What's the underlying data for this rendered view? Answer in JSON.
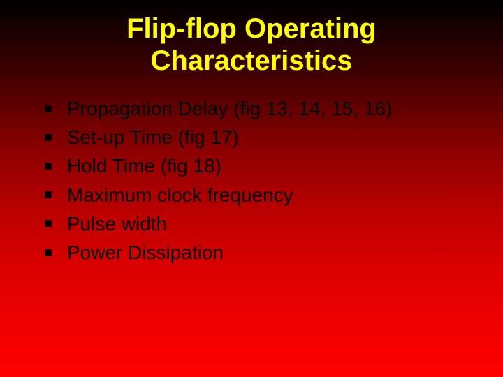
{
  "slide": {
    "title_line1": "Flip-flop Operating",
    "title_line2": "Characteristics",
    "title_color": "#ffff00",
    "title_fontsize": 40,
    "bullet_fontsize": 28,
    "bullet_marker_color": "#000000",
    "bullet_marker_size": 10,
    "text_color": "#000000",
    "background_gradient": {
      "from": "#000000",
      "to": "#ff0000",
      "direction": "top-to-bottom"
    },
    "items": [
      "Propagation Delay (fig 13, 14, 15, 16)",
      "Set-up Time (fig 17)",
      "Hold Time (fig 18)",
      "Maximum clock frequency",
      "Pulse width",
      "Power Dissipation"
    ]
  }
}
